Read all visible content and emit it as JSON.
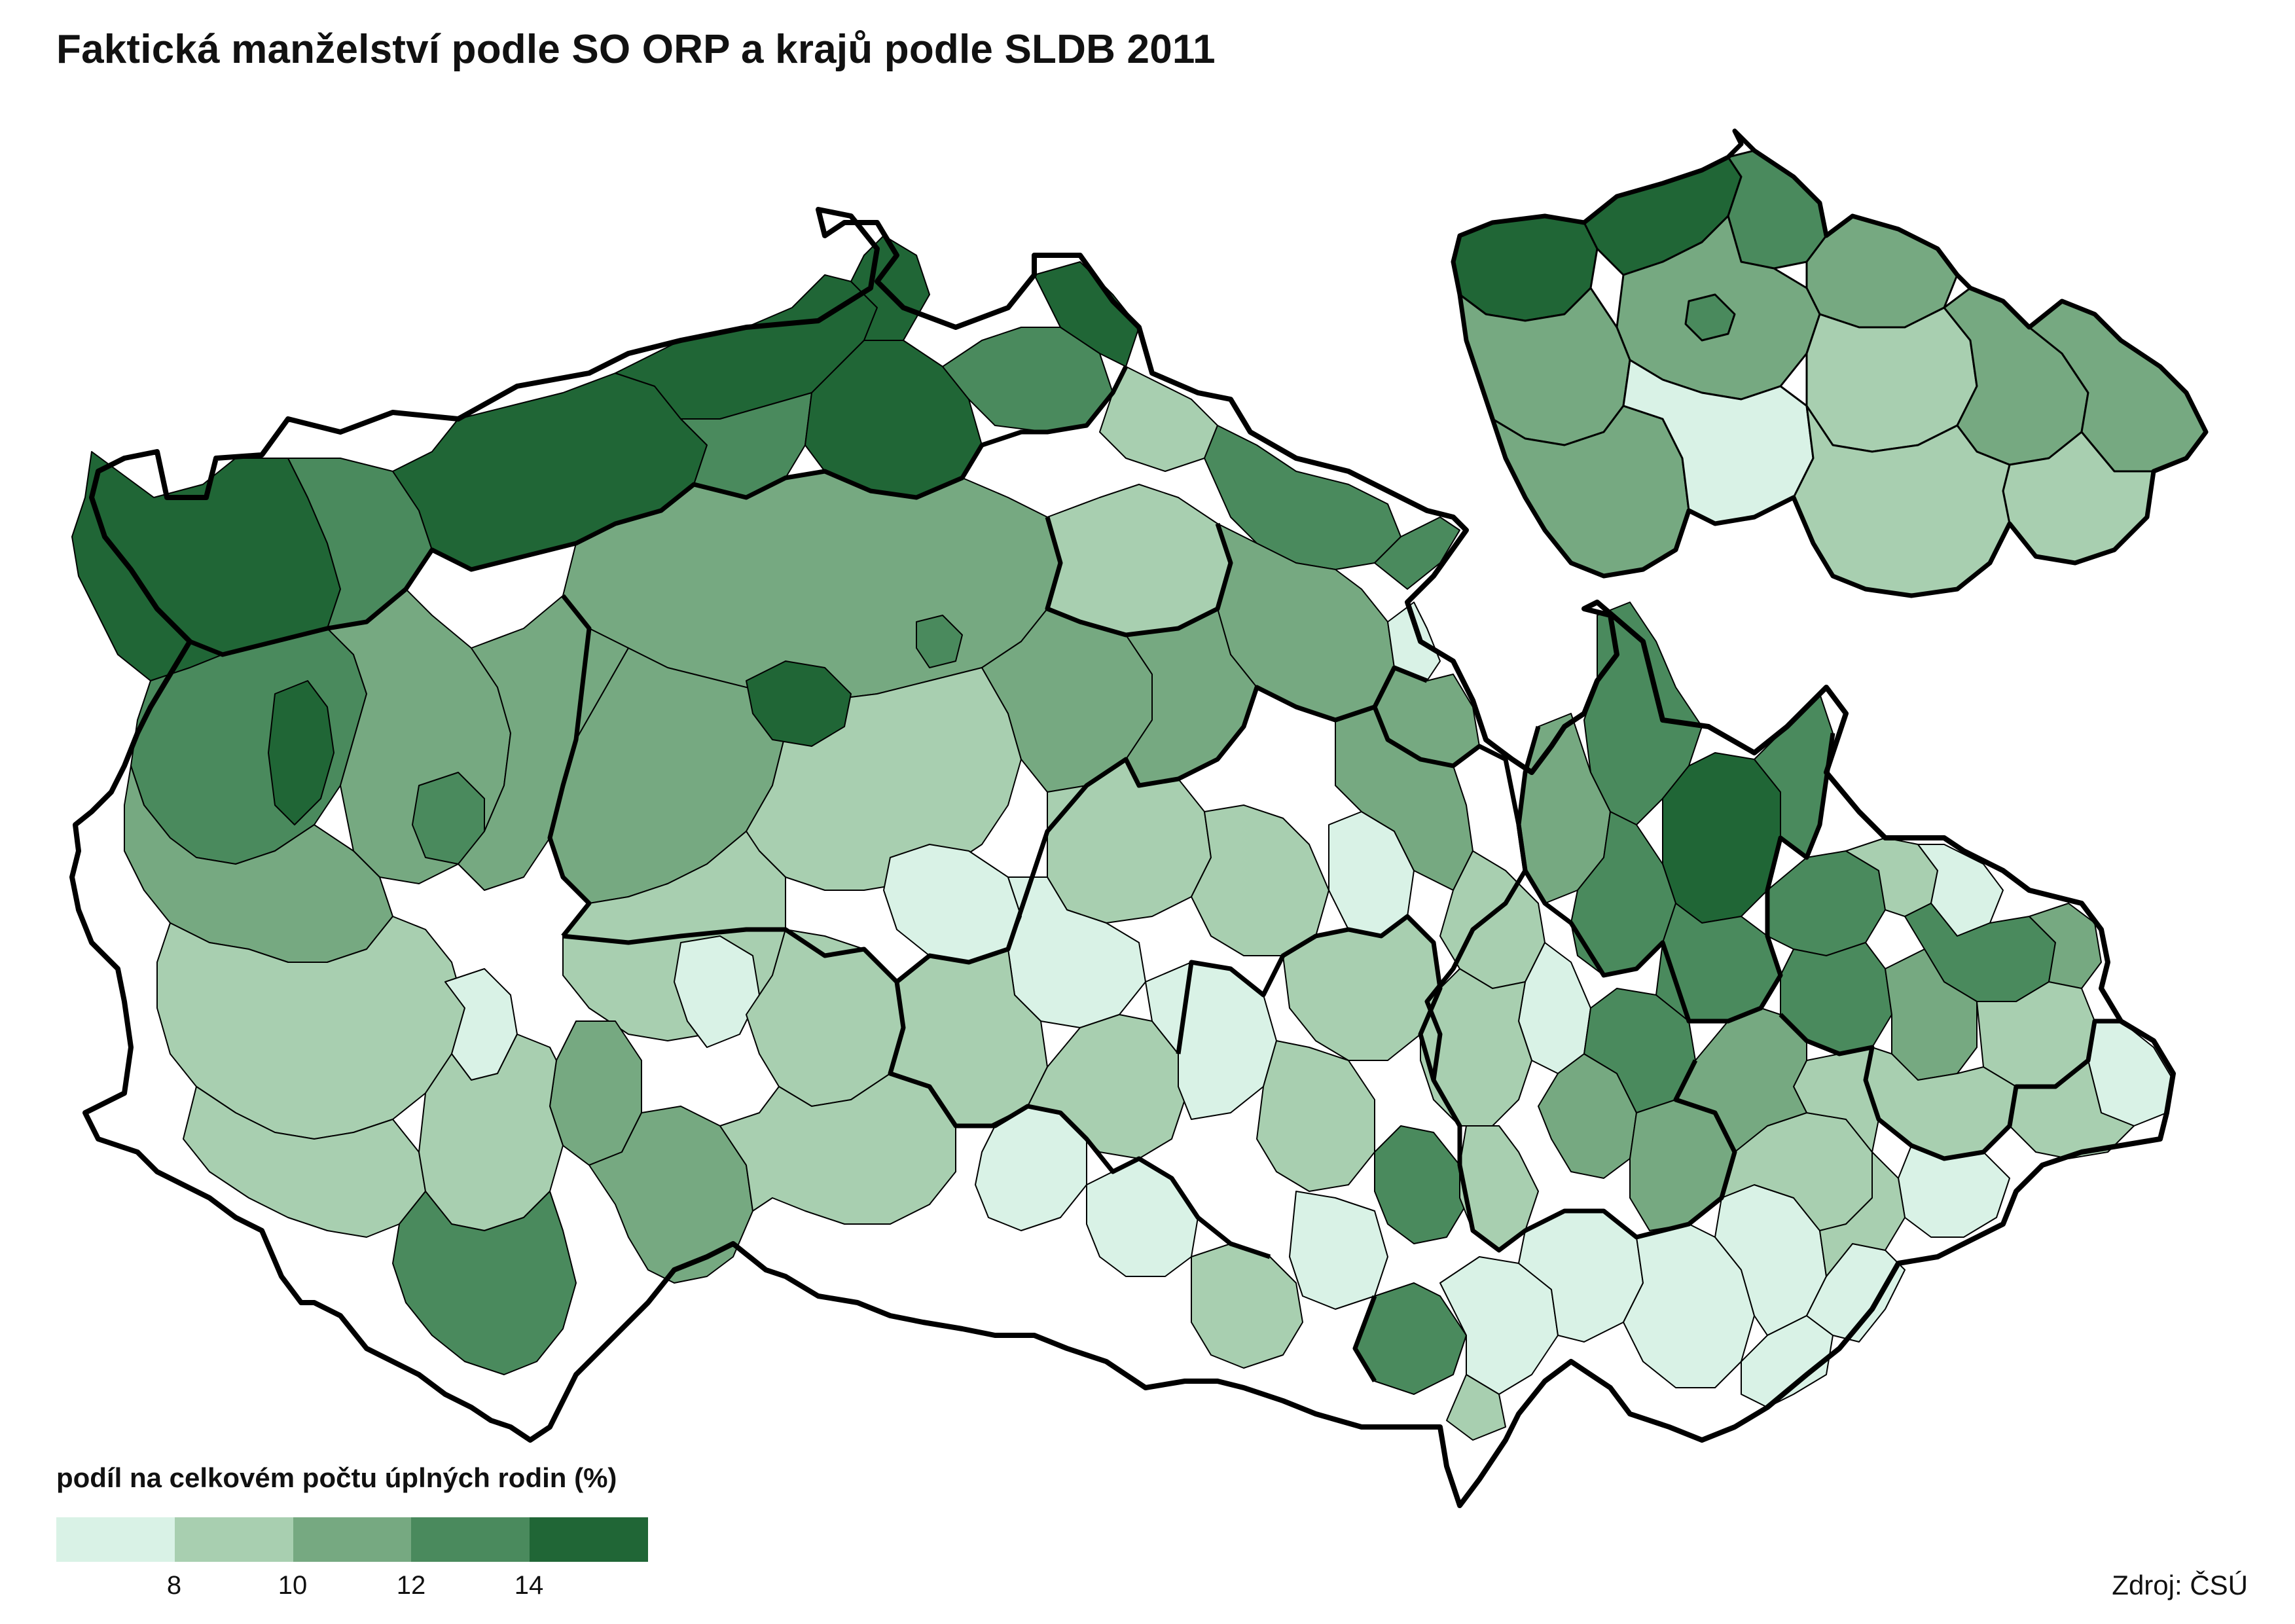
{
  "title": "Faktická manželství podle SO ORP a krajů podle SLDB 2011",
  "legend": {
    "title": "podíl na celkovém počtu úplných rodin (%)",
    "ticks": [
      "8",
      "10",
      "12",
      "14"
    ],
    "classes": [
      {
        "color": "#d9f2e6",
        "label": "< 8"
      },
      {
        "color": "#a8cfb0",
        "label": "8 – 10"
      },
      {
        "color": "#76a981",
        "label": "10 – 12"
      },
      {
        "color": "#4a8a5d",
        "label": "12 – 14"
      },
      {
        "color": "#206636",
        "label": "> 14"
      }
    ]
  },
  "source": "Zdroj: ČSÚ",
  "colors": {
    "region_border": "#000000",
    "district_border": "#000000",
    "background": "#ffffff"
  }
}
